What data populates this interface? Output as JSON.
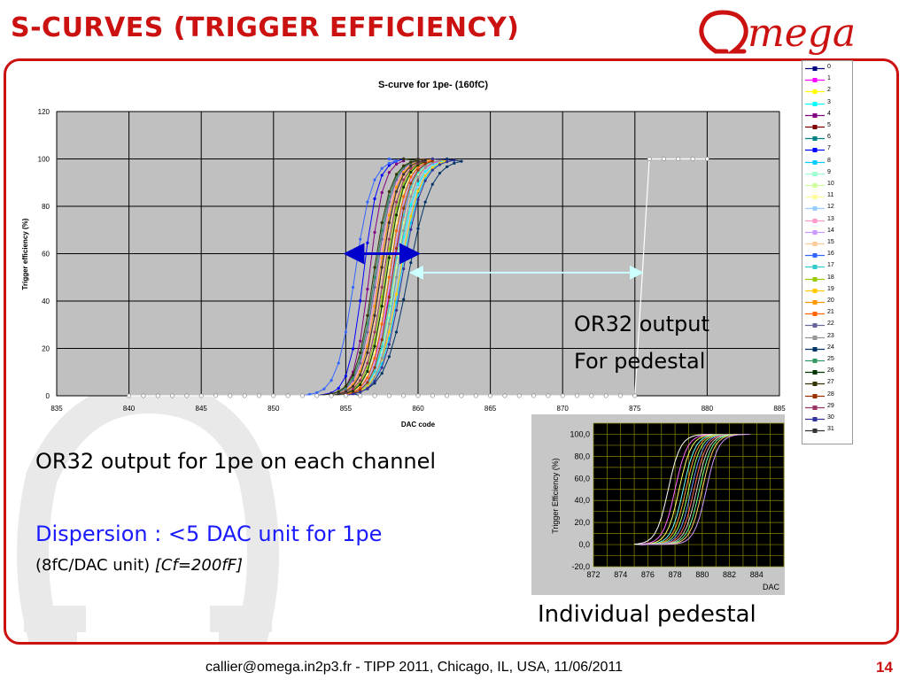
{
  "slide": {
    "title": "S-CURVES (TRIGGER EFFICIENCY)",
    "logo_text": "mega",
    "footer": "callier@omega.in2p3.fr - TIPP 2011, Chicago, IL, USA, 11/06/2011",
    "page_number": "14",
    "accent_color": "#cc1111"
  },
  "annotations": {
    "or32_pedestal_line1": "OR32 output",
    "or32_pedestal_line2": "For pedestal",
    "or32_channel": "OR32 output for 1pe on each channel",
    "dispersion": "Dispersion : <5 DAC unit for 1pe",
    "conversion_plain": "(8fC/DAC unit) ",
    "conversion_italic": "[Cf=200fF]",
    "inset_caption": "Individual pedestal"
  },
  "chart_data": [
    {
      "type": "line",
      "title": "S-curve for 1pe- (160fC)",
      "xlabel": "DAC code",
      "ylabel": "Trigger efficiency (%)",
      "xlim": [
        835,
        885
      ],
      "ylim": [
        0,
        120
      ],
      "xticks": [
        835,
        840,
        845,
        850,
        855,
        860,
        865,
        870,
        875,
        880,
        885
      ],
      "yticks": [
        0,
        20,
        40,
        60,
        80,
        100,
        120
      ],
      "grid": true,
      "legend_position": "right",
      "series": [
        {
          "name": "0",
          "color": "#000080",
          "midpoint": 857.0,
          "width": 0.6
        },
        {
          "name": "1",
          "color": "#ff00ff",
          "midpoint": 858.2,
          "width": 0.7
        },
        {
          "name": "2",
          "color": "#ffff00",
          "midpoint": 857.8,
          "width": 0.6
        },
        {
          "name": "3",
          "color": "#00ffff",
          "midpoint": 858.5,
          "width": 0.7
        },
        {
          "name": "4",
          "color": "#800080",
          "midpoint": 856.6,
          "width": 0.5
        },
        {
          "name": "5",
          "color": "#800000",
          "midpoint": 857.4,
          "width": 0.6
        },
        {
          "name": "6",
          "color": "#008080",
          "midpoint": 858.0,
          "width": 0.6
        },
        {
          "name": "7",
          "color": "#0000ff",
          "midpoint": 856.2,
          "width": 0.5
        },
        {
          "name": "8",
          "color": "#00ccff",
          "midpoint": 858.8,
          "width": 0.7
        },
        {
          "name": "9",
          "color": "#99ffcc",
          "midpoint": 857.6,
          "width": 0.6
        },
        {
          "name": "10",
          "color": "#ccff99",
          "midpoint": 858.4,
          "width": 0.6
        },
        {
          "name": "11",
          "color": "#ffff99",
          "midpoint": 857.9,
          "width": 0.6
        },
        {
          "name": "12",
          "color": "#99ccff",
          "midpoint": 858.6,
          "width": 0.7
        },
        {
          "name": "13",
          "color": "#ff99cc",
          "midpoint": 857.2,
          "width": 0.6
        },
        {
          "name": "14",
          "color": "#cc99ff",
          "midpoint": 858.1,
          "width": 0.6
        },
        {
          "name": "15",
          "color": "#ffcc99",
          "midpoint": 857.5,
          "width": 0.6
        },
        {
          "name": "16",
          "color": "#3366ff",
          "midpoint": 855.6,
          "width": 0.6
        },
        {
          "name": "17",
          "color": "#33cccc",
          "midpoint": 858.3,
          "width": 0.6
        },
        {
          "name": "18",
          "color": "#99cc00",
          "midpoint": 857.7,
          "width": 0.6
        },
        {
          "name": "19",
          "color": "#ffcc00",
          "midpoint": 858.7,
          "width": 0.7
        },
        {
          "name": "20",
          "color": "#ff9900",
          "midpoint": 857.3,
          "width": 0.6
        },
        {
          "name": "21",
          "color": "#ff6600",
          "midpoint": 858.0,
          "width": 0.6
        },
        {
          "name": "22",
          "color": "#666699",
          "midpoint": 857.1,
          "width": 0.6
        },
        {
          "name": "23",
          "color": "#969696",
          "midpoint": 858.5,
          "width": 0.6
        },
        {
          "name": "24",
          "color": "#003366",
          "midpoint": 859.3,
          "width": 0.8
        },
        {
          "name": "25",
          "color": "#339966",
          "midpoint": 857.0,
          "width": 0.6
        },
        {
          "name": "26",
          "color": "#003300",
          "midpoint": 857.8,
          "width": 0.6
        },
        {
          "name": "27",
          "color": "#333300",
          "midpoint": 856.9,
          "width": 0.6
        },
        {
          "name": "28",
          "color": "#993300",
          "midpoint": 858.2,
          "width": 0.6
        },
        {
          "name": "29",
          "color": "#993366",
          "midpoint": 857.6,
          "width": 0.6
        },
        {
          "name": "30",
          "color": "#333399",
          "midpoint": 858.9,
          "width": 0.7
        },
        {
          "name": "31",
          "color": "#333333",
          "midpoint": 857.4,
          "width": 0.6
        },
        {
          "name": "Pedestal",
          "color": "#ffffff",
          "x": [
            840,
            841,
            842,
            843,
            844,
            845,
            846,
            847,
            848,
            849,
            850,
            851,
            852,
            853,
            854,
            855,
            856,
            857,
            858,
            859,
            860,
            861,
            862,
            863,
            864,
            865,
            866,
            867,
            868,
            869,
            870,
            871,
            872,
            873,
            874,
            875,
            876,
            877,
            878,
            879,
            880
          ],
          "y": [
            0,
            0,
            0,
            0,
            0,
            0,
            0,
            0,
            0,
            0,
            0,
            0,
            0,
            0,
            0,
            0,
            0,
            0,
            0,
            0,
            0,
            0,
            0,
            0,
            0,
            0,
            0,
            0,
            0,
            0,
            0,
            0,
            0,
            0,
            0,
            0,
            100,
            100,
            100,
            100,
            100
          ]
        }
      ],
      "annotations": [
        {
          "type": "double-arrow",
          "color": "#0000cc",
          "from": [
            855,
            60
          ],
          "to": [
            860,
            60
          ]
        },
        {
          "type": "double-arrow",
          "color": "#ccffff",
          "from": [
            859.5,
            52
          ],
          "to": [
            875.5,
            52
          ]
        }
      ]
    },
    {
      "type": "line",
      "title": "",
      "xlabel": "DAC",
      "ylabel": "Trigger Efficiency (%)",
      "xlim": [
        872,
        886
      ],
      "ylim": [
        -20,
        110
      ],
      "xticks": [
        872,
        874,
        876,
        878,
        880,
        882,
        884
      ],
      "yticks": [
        -20,
        0,
        20,
        40,
        60,
        80,
        100
      ],
      "ytick_labels": [
        "-20,0",
        "0,0",
        "20,0",
        "40,0",
        "60,0",
        "80,0",
        "100,0"
      ],
      "grid": true,
      "background": "#000000",
      "grid_color": "#888800",
      "series_midpoints": [
        877.5,
        878.0,
        878.3,
        878.6,
        878.8,
        879.0,
        879.2,
        879.4,
        879.6,
        879.8,
        880.0,
        880.3
      ],
      "series_colors": [
        "#ffffff",
        "#ff66ff",
        "#ffff66",
        "#66ffff",
        "#ff9933",
        "#99ff66",
        "#6699ff",
        "#ff6666",
        "#cccccc",
        "#66ff99",
        "#ffcc66",
        "#cc99ff"
      ]
    }
  ]
}
